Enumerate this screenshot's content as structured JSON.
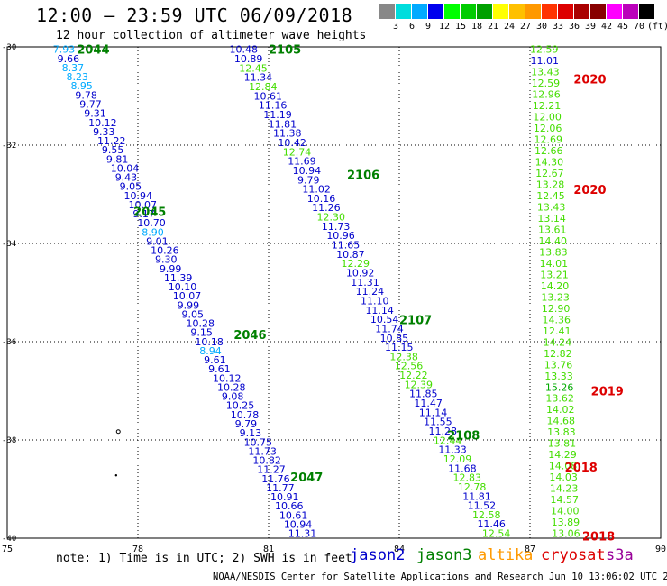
{
  "title": "12:00 – 23:59 UTC 06/09/2018",
  "subtitle": "12 hour collection of altimeter wave heights",
  "scale": {
    "unit": "(ft)",
    "colors": [
      "#888888",
      "#00dddd",
      "#00aaff",
      "#0000ee",
      "#00ff00",
      "#00cc00",
      "#00a000",
      "#ffff00",
      "#ffc000",
      "#ff9900",
      "#ff3300",
      "#dd0000",
      "#aa0000",
      "#880000",
      "#ff00ff",
      "#bb00bb",
      "#000000"
    ],
    "labels": [
      "3",
      "6",
      "9",
      "12",
      "15",
      "18",
      "21",
      "24",
      "27",
      "30",
      "33",
      "36",
      "39",
      "42",
      "45",
      "70"
    ]
  },
  "axes": {
    "y_ticks": [
      "-30",
      "-32",
      "-34",
      "-36",
      "-38",
      "-40"
    ],
    "x_ticks": [
      "75",
      "78",
      "81",
      "84",
      "87",
      "90"
    ]
  },
  "chart_data": {
    "type": "scatter",
    "x_range": [
      75,
      90
    ],
    "y_range": [
      -40,
      -30
    ],
    "tracks": [
      {
        "name": "2044",
        "color": "#008000",
        "label_lon": 76.6,
        "label_lat": -30.05,
        "lon_start": 76.05,
        "lon_end": 81.45,
        "lat_start": -30.05,
        "lat_end": -39.9,
        "values": [
          "7.93",
          "9.66",
          "8.37",
          "8.23",
          "8.95",
          "9.78",
          "9.77",
          "9.31",
          "10.12",
          "9.33",
          "11.22",
          "9.55",
          "9.81",
          "10.04",
          "9.43",
          "9.05",
          "10.94",
          "10.07",
          "9.17",
          "10.70",
          "8.90",
          "9.01",
          "10.26",
          "9.30",
          "9.99",
          "11.39",
          "10.10",
          "10.07",
          "9.99",
          "9.05",
          "10.28",
          "9.15",
          "10.18",
          "8.94",
          "9.61",
          "9.61",
          "10.12",
          "10.28",
          "9.08",
          "10.25",
          "10.78",
          "9.79",
          "9.13",
          "10.75",
          "11.73",
          "10.82",
          "11.27",
          "11.76",
          "11.77",
          "10.91",
          "10.66",
          "10.61",
          "10.94",
          "11.31"
        ],
        "extra_labels": [
          {
            "name": "2045",
            "lon": 77.9,
            "lat": -33.35
          },
          {
            "name": "2046",
            "lon": 80.2,
            "lat": -35.85
          },
          {
            "name": "2047",
            "lon": 81.5,
            "lat": -38.75
          }
        ]
      },
      {
        "name": "2105",
        "color": "#008000",
        "label_lon": 81.0,
        "label_lat": -30.05,
        "lon_start": 80.1,
        "lon_end": 85.9,
        "lat_start": -30.05,
        "lat_end": -39.9,
        "values": [
          "10.48",
          "10.89",
          "12.45",
          "11.34",
          "12.84",
          "10.61",
          "11.16",
          "11.19",
          "11.81",
          "11.38",
          "10.42",
          "12.74",
          "11.69",
          "10.94",
          "9.79",
          "11.02",
          "10.16",
          "11.26",
          "12.30",
          "11.73",
          "10.96",
          "11.65",
          "10.87",
          "12.29",
          "10.92",
          "11.31",
          "11.24",
          "11.10",
          "11.14",
          "10.54",
          "11.74",
          "10.85",
          "11.15",
          "12.38",
          "12.56",
          "12.22",
          "12.39",
          "11.85",
          "11.47",
          "11.14",
          "11.55",
          "11.28",
          "12.44",
          "11.33",
          "12.09",
          "11.68",
          "12.83",
          "12.78",
          "11.81",
          "11.52",
          "12.58",
          "11.46",
          "12.54"
        ],
        "extra_labels": [
          {
            "name": "2106",
            "lon": 82.8,
            "lat": -32.6
          },
          {
            "name": "2107",
            "lon": 84.0,
            "lat": -35.55
          },
          {
            "name": "2108",
            "lon": 85.1,
            "lat": -37.9
          }
        ]
      },
      {
        "name": "2020",
        "color": "#dd0000",
        "label_lon": 88.0,
        "label_lat": -30.65,
        "lon_start": 87.0,
        "lon_end": 87.5,
        "lat_start": -30.05,
        "lat_end": -39.9,
        "values": [
          "12.59",
          "11.01",
          "13.43",
          "12.59",
          "12.96",
          "12.21",
          "12.00",
          "12.06",
          "12.69",
          "12.66",
          "14.30",
          "12.67",
          "13.28",
          "12.45",
          "13.43",
          "13.14",
          "13.61",
          "14.40",
          "13.83",
          "14.01",
          "13.21",
          "14.20",
          "13.23",
          "12.90",
          "14.36",
          "12.41",
          "14.24",
          "12.82",
          "13.76",
          "13.33",
          "15.26",
          "13.62",
          "14.02",
          "14.68",
          "13.83",
          "13.81",
          "14.29",
          "14.08",
          "14.03",
          "14.23",
          "14.57",
          "14.00",
          "13.89",
          "13.06"
        ],
        "extra_labels": [
          {
            "name": "2020",
            "lon": 88.0,
            "lat": -32.9
          },
          {
            "name": "2019",
            "lon": 88.4,
            "lat": -37.0
          },
          {
            "name": "2018",
            "lon": 87.8,
            "lat": -38.55
          },
          {
            "name": "2018",
            "lon": 88.2,
            "lat": -39.95
          }
        ]
      }
    ]
  },
  "notes": "note:  1) Time is in UTC;  2) SWH is in feet",
  "satellites": [
    {
      "name": "jason2",
      "color": "#0000cc"
    },
    {
      "name": "jason3",
      "color": "#008000"
    },
    {
      "name": "altika",
      "color": "#ff9900"
    },
    {
      "name": "cryosat",
      "color": "#dd0000"
    },
    {
      "name": "s3a",
      "color": "#990099"
    }
  ],
  "footer": "NOAA/NESDIS Center for Satellite Applications and Research    Jun 10 13:06:02 UTC 2018"
}
